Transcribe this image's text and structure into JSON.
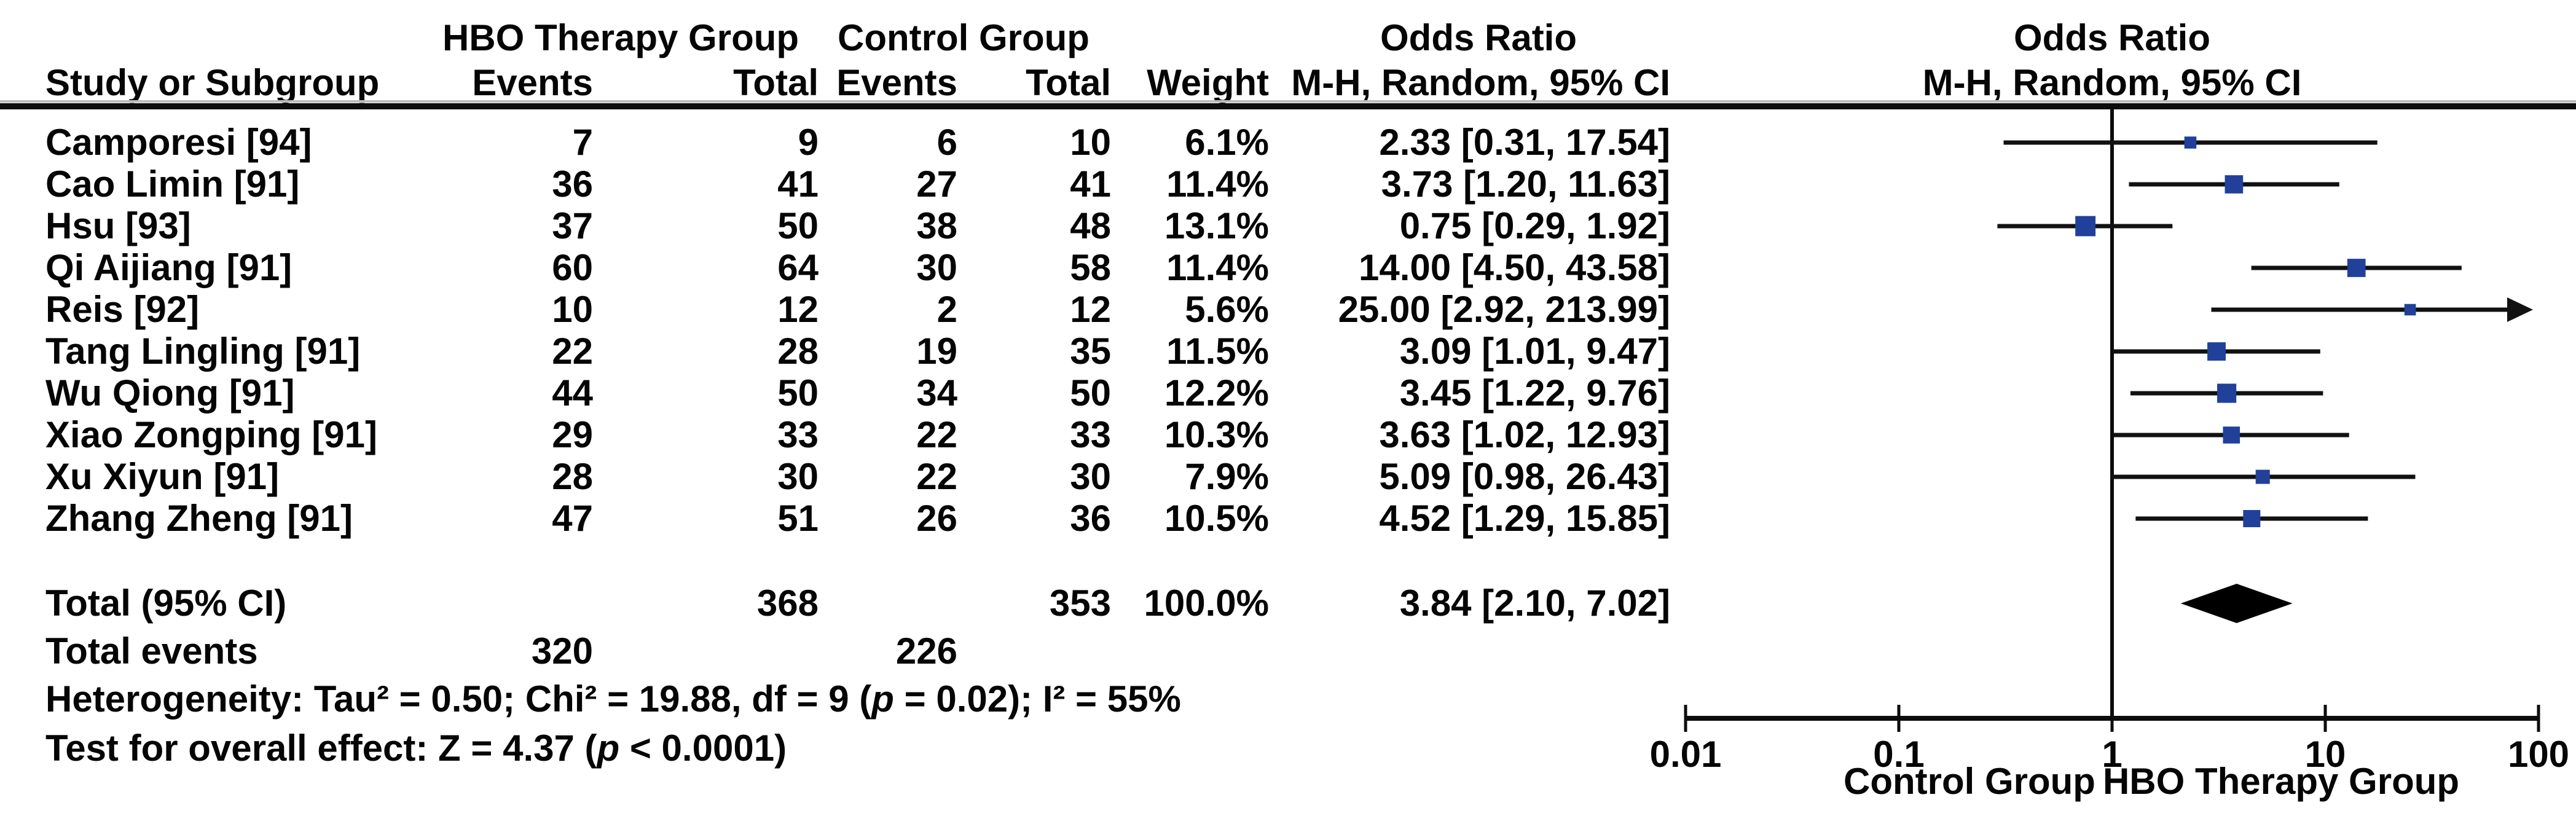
{
  "header": {
    "study_col": "Study or Subgroup",
    "hbo_group": "HBO Therapy Group",
    "control_group": "Control Group",
    "events": "Events",
    "total": "Total",
    "weight": "Weight",
    "or_title": "Odds Ratio",
    "or_subtitle": "M-H, Random, 95% CI",
    "plot_title": "Odds Ratio",
    "plot_subtitle": "M-H, Random, 95% CI"
  },
  "chart_data": {
    "type": "forest",
    "x_scale": "log10",
    "x_range": [
      0.01,
      100
    ],
    "x_ticks": [
      "0.01",
      "0.1",
      "1",
      "10",
      "100"
    ],
    "x_axis_left_label": "Control Group",
    "x_axis_right_label": "HBO Therapy Group",
    "studies": [
      {
        "name": "Camporesi [94]",
        "hbo_events": "7",
        "hbo_total": "9",
        "control_events": "6",
        "control_total": "10",
        "weight": "6.1%",
        "or": 2.33,
        "ci_low": 0.31,
        "ci_high": 17.54,
        "or_ci_text": "2.33 [0.31, 17.54]"
      },
      {
        "name": "Cao Limin [91]",
        "hbo_events": "36",
        "hbo_total": "41",
        "control_events": "27",
        "control_total": "41",
        "weight": "11.4%",
        "or": 3.73,
        "ci_low": 1.2,
        "ci_high": 11.63,
        "or_ci_text": "3.73 [1.20, 11.63]"
      },
      {
        "name": "Hsu [93]",
        "hbo_events": "37",
        "hbo_total": "50",
        "control_events": "38",
        "control_total": "48",
        "weight": "13.1%",
        "or": 0.75,
        "ci_low": 0.29,
        "ci_high": 1.92,
        "or_ci_text": "0.75 [0.29, 1.92]"
      },
      {
        "name": "Qi Aijiang [91]",
        "hbo_events": "60",
        "hbo_total": "64",
        "control_events": "30",
        "control_total": "58",
        "weight": "11.4%",
        "or": 14.0,
        "ci_low": 4.5,
        "ci_high": 43.58,
        "or_ci_text": "14.00 [4.50, 43.58]"
      },
      {
        "name": "Reis [92]",
        "hbo_events": "10",
        "hbo_total": "12",
        "control_events": "2",
        "control_total": "12",
        "weight": "5.6%",
        "or": 25.0,
        "ci_low": 2.92,
        "ci_high": 213.99,
        "or_ci_text": "25.00 [2.92, 213.99]"
      },
      {
        "name": "Tang Lingling [91]",
        "hbo_events": "22",
        "hbo_total": "28",
        "control_events": "19",
        "control_total": "35",
        "weight": "11.5%",
        "or": 3.09,
        "ci_low": 1.01,
        "ci_high": 9.47,
        "or_ci_text": "3.09 [1.01, 9.47]"
      },
      {
        "name": "Wu Qiong [91]",
        "hbo_events": "44",
        "hbo_total": "50",
        "control_events": "34",
        "control_total": "50",
        "weight": "12.2%",
        "or": 3.45,
        "ci_low": 1.22,
        "ci_high": 9.76,
        "or_ci_text": "3.45 [1.22, 9.76]"
      },
      {
        "name": "Xiao Zongping [91]",
        "hbo_events": "29",
        "hbo_total": "33",
        "control_events": "22",
        "control_total": "33",
        "weight": "10.3%",
        "or": 3.63,
        "ci_low": 1.02,
        "ci_high": 12.93,
        "or_ci_text": "3.63 [1.02, 12.93]"
      },
      {
        "name": "Xu Xiyun [91]",
        "hbo_events": "28",
        "hbo_total": "30",
        "control_events": "22",
        "control_total": "30",
        "weight": "7.9%",
        "or": 5.09,
        "ci_low": 0.98,
        "ci_high": 26.43,
        "or_ci_text": "5.09 [0.98, 26.43]"
      },
      {
        "name": "Zhang Zheng [91]",
        "hbo_events": "47",
        "hbo_total": "51",
        "control_events": "26",
        "control_total": "36",
        "weight": "10.5%",
        "or": 4.52,
        "ci_low": 1.29,
        "ci_high": 15.85,
        "or_ci_text": "4.52 [1.29, 15.85]"
      }
    ],
    "total": {
      "label": "Total (95% CI)",
      "hbo_total": "368",
      "control_total": "353",
      "weight": "100.0%",
      "or": 3.84,
      "ci_low": 2.1,
      "ci_high": 7.02,
      "or_ci_text": "3.84 [2.10, 7.02]"
    },
    "total_events": {
      "label": "Total events",
      "hbo": "320",
      "control": "226"
    },
    "heterogeneity": {
      "pre": "Heterogeneity: Tau² = 0.50; Chi² = 19.88, df = 9 (",
      "p": "p",
      "post": " = 0.02); I² = 55%"
    },
    "overall_effect": {
      "pre": "Test for overall effect: Z = 4.37 (",
      "p": "p",
      "post": " < 0.0001)"
    },
    "colors": {
      "marker": "#20409a",
      "ci_line": "#111111",
      "diamond": "#000000",
      "axis": "#0c0c0c"
    }
  }
}
